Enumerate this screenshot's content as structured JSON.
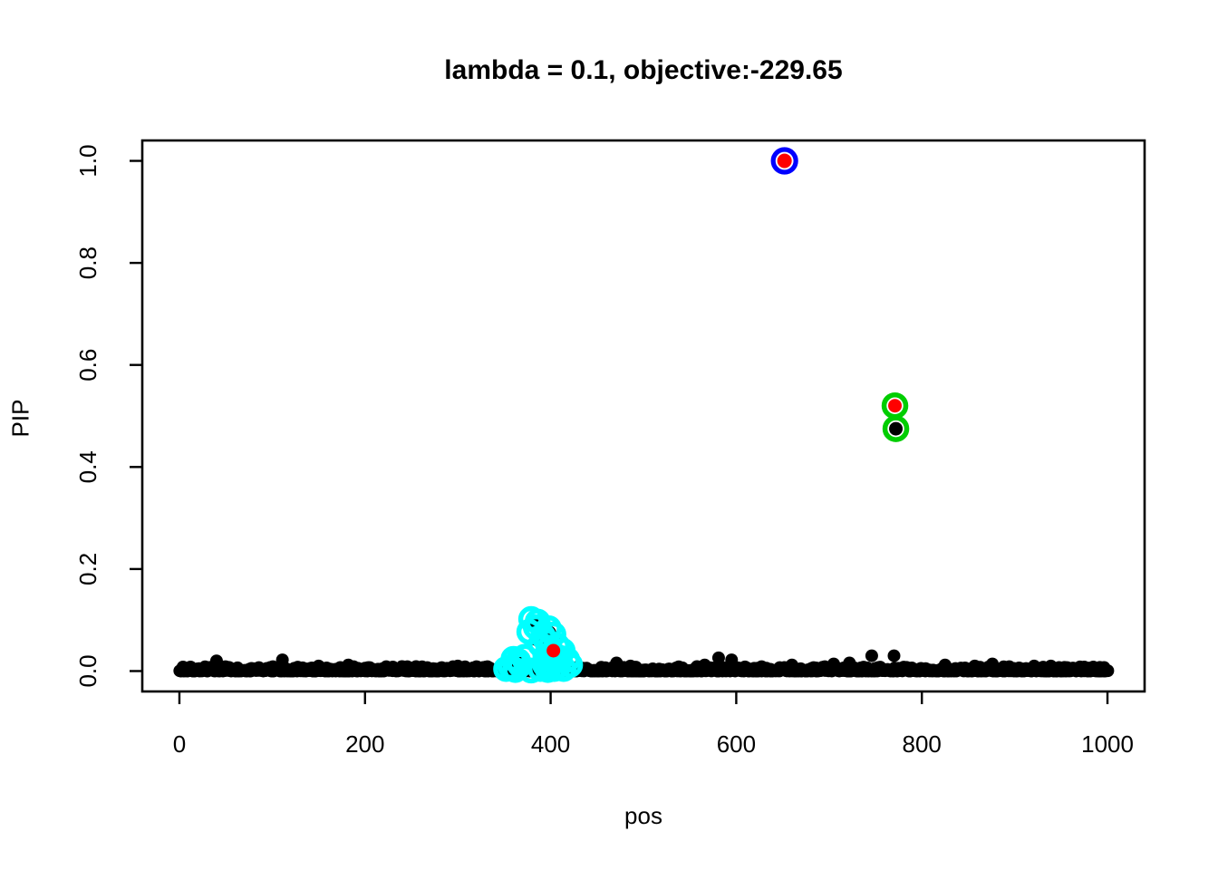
{
  "title": "lambda = 0.1, objective:-229.65",
  "chart_data": {
    "type": "scatter",
    "title": "lambda = 0.1, objective:-229.65",
    "xlabel": "pos",
    "ylabel": "PIP",
    "xlim": [
      0,
      1000
    ],
    "ylim": [
      0.0,
      1.0
    ],
    "x_ticks": [
      "0",
      "200",
      "400",
      "600",
      "800",
      "1000"
    ],
    "x_tick_values": [
      0,
      200,
      400,
      600,
      800,
      1000
    ],
    "y_ticks": [
      "0.0",
      "0.2",
      "0.4",
      "0.6",
      "0.8",
      "1.0"
    ],
    "y_tick_values": [
      0.0,
      0.2,
      0.4,
      0.6,
      0.8,
      1.0
    ],
    "grid": false,
    "legend": "none",
    "colors": {
      "point": "#000000",
      "red_fill": "#FF0000",
      "blue_ring": "#0000FF",
      "green_ring": "#00CD00",
      "cyan_ring": "#00FFFF",
      "axis": "#000000",
      "background": "#FFFFFF"
    },
    "highlighted_points": [
      {
        "pos": 652,
        "pip": 1.0,
        "ring": "blue",
        "fill": "red"
      },
      {
        "pos": 771,
        "pip": 0.52,
        "ring": "green",
        "fill": "red"
      },
      {
        "pos": 772,
        "pip": 0.475,
        "ring": "green",
        "fill": "black"
      },
      {
        "pos": 403,
        "pip": 0.04,
        "ring": "none",
        "fill": "red"
      }
    ],
    "cyan_ring_points": [
      [
        379,
        0.102
      ],
      [
        386,
        0.097
      ],
      [
        384,
        0.086
      ],
      [
        377,
        0.077
      ],
      [
        392,
        0.068
      ],
      [
        398,
        0.084
      ],
      [
        403,
        0.072
      ],
      [
        396,
        0.058
      ],
      [
        389,
        0.052
      ],
      [
        399,
        0.046
      ],
      [
        407,
        0.05
      ],
      [
        413,
        0.04
      ],
      [
        403,
        0.033
      ],
      [
        395,
        0.03
      ],
      [
        410,
        0.026
      ],
      [
        418,
        0.022
      ],
      [
        421,
        0.012
      ],
      [
        408,
        0.01
      ],
      [
        372,
        0.028
      ],
      [
        365,
        0.02
      ],
      [
        360,
        0.024
      ],
      [
        357,
        0.008
      ],
      [
        367,
        0.012
      ],
      [
        352,
        0.004
      ],
      [
        362,
        0.002
      ],
      [
        389,
        0.004
      ],
      [
        397,
        0.002
      ],
      [
        404,
        0.004
      ],
      [
        414,
        0.004
      ],
      [
        379,
        0.001
      ],
      [
        394,
        0.012
      ]
    ],
    "cluster_black_points": [
      [
        381,
        0.094
      ],
      [
        391,
        0.083
      ],
      [
        399,
        0.076
      ],
      [
        385,
        0.061
      ],
      [
        395,
        0.049
      ],
      [
        404,
        0.058
      ],
      [
        370,
        0.021
      ],
      [
        359,
        0.011
      ],
      [
        404,
        0.012
      ],
      [
        393,
        0.021
      ],
      [
        412,
        0.021
      ],
      [
        420,
        0.006
      ],
      [
        375,
        0.004
      ],
      [
        388,
        0.03
      ]
    ],
    "baseline": {
      "count": 1000,
      "pos_min": 0,
      "pos_max": 1000,
      "pip_jitter_max": 0.009,
      "seed": 20,
      "bumps": [
        [
          12,
          0.008
        ],
        [
          40,
          0.02
        ],
        [
          111,
          0.022
        ],
        [
          150,
          0.01
        ],
        [
          182,
          0.012
        ],
        [
          230,
          0.008
        ],
        [
          300,
          0.01
        ],
        [
          330,
          0.008
        ],
        [
          471,
          0.016
        ],
        [
          486,
          0.01
        ],
        [
          566,
          0.012
        ],
        [
          581,
          0.026
        ],
        [
          595,
          0.022
        ],
        [
          660,
          0.012
        ],
        [
          705,
          0.014
        ],
        [
          722,
          0.016
        ],
        [
          746,
          0.03
        ],
        [
          770,
          0.03
        ],
        [
          825,
          0.012
        ],
        [
          857,
          0.01
        ],
        [
          876,
          0.014
        ],
        [
          921,
          0.01
        ],
        [
          939,
          0.01
        ],
        [
          975,
          0.008
        ]
      ]
    }
  }
}
